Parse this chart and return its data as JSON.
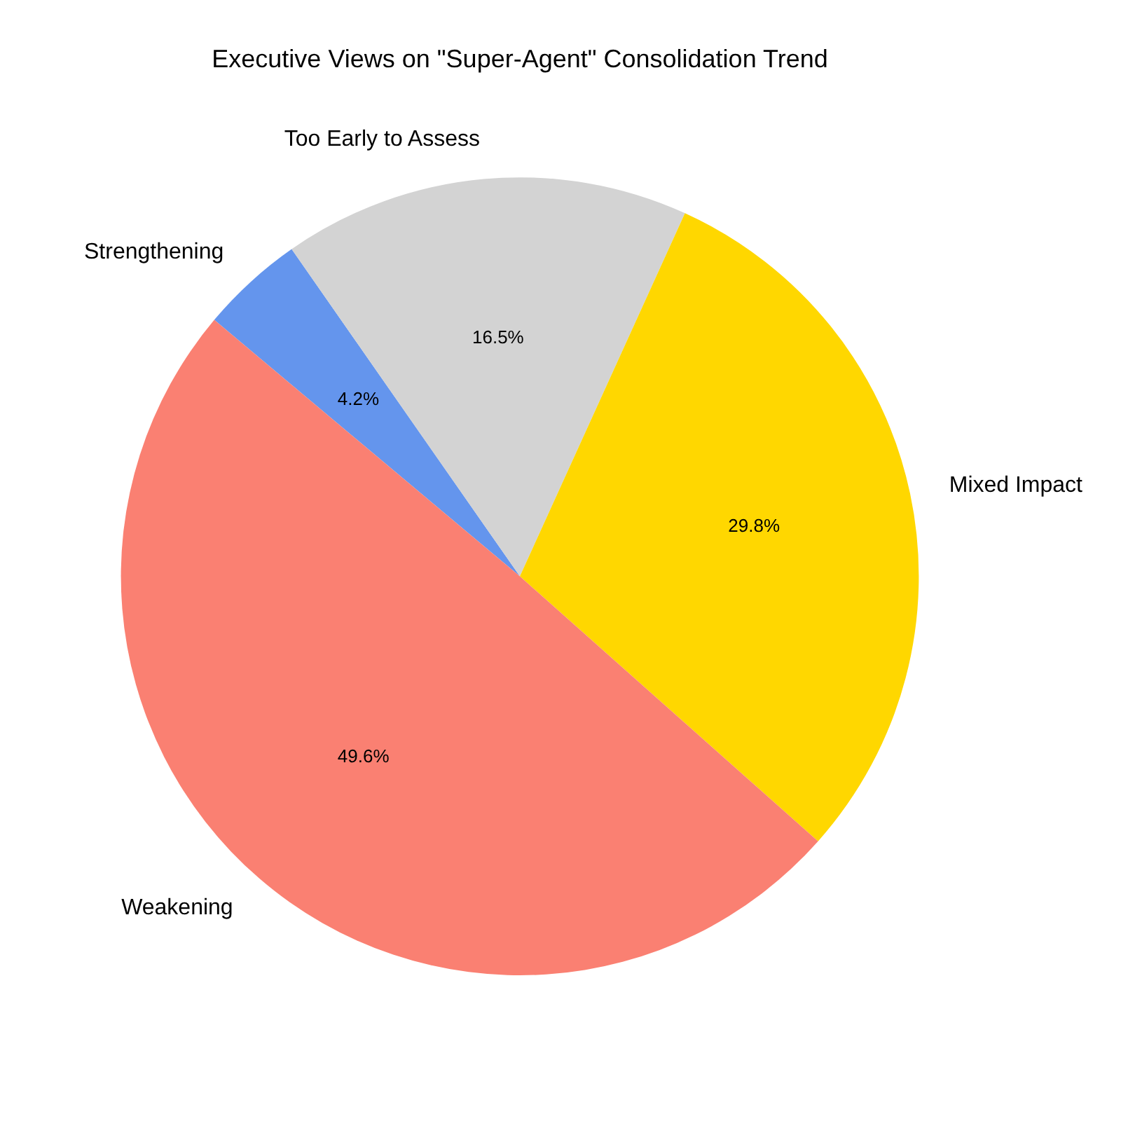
{
  "chart_data": {
    "type": "pie",
    "title": "Executive Views on \"Super-Agent\" Consolidation Trend",
    "categories": [
      "Strengthening",
      "Too Early to Assess",
      "Mixed Impact",
      "Weakening"
    ],
    "values": [
      4.2,
      16.5,
      29.8,
      49.6
    ],
    "colors": [
      "#6495ed",
      "#d3d3d3",
      "#ffd700",
      "#fa8072"
    ],
    "value_labels": [
      "4.2%",
      "16.5%",
      "29.8%",
      "49.6%"
    ],
    "legend": false
  }
}
